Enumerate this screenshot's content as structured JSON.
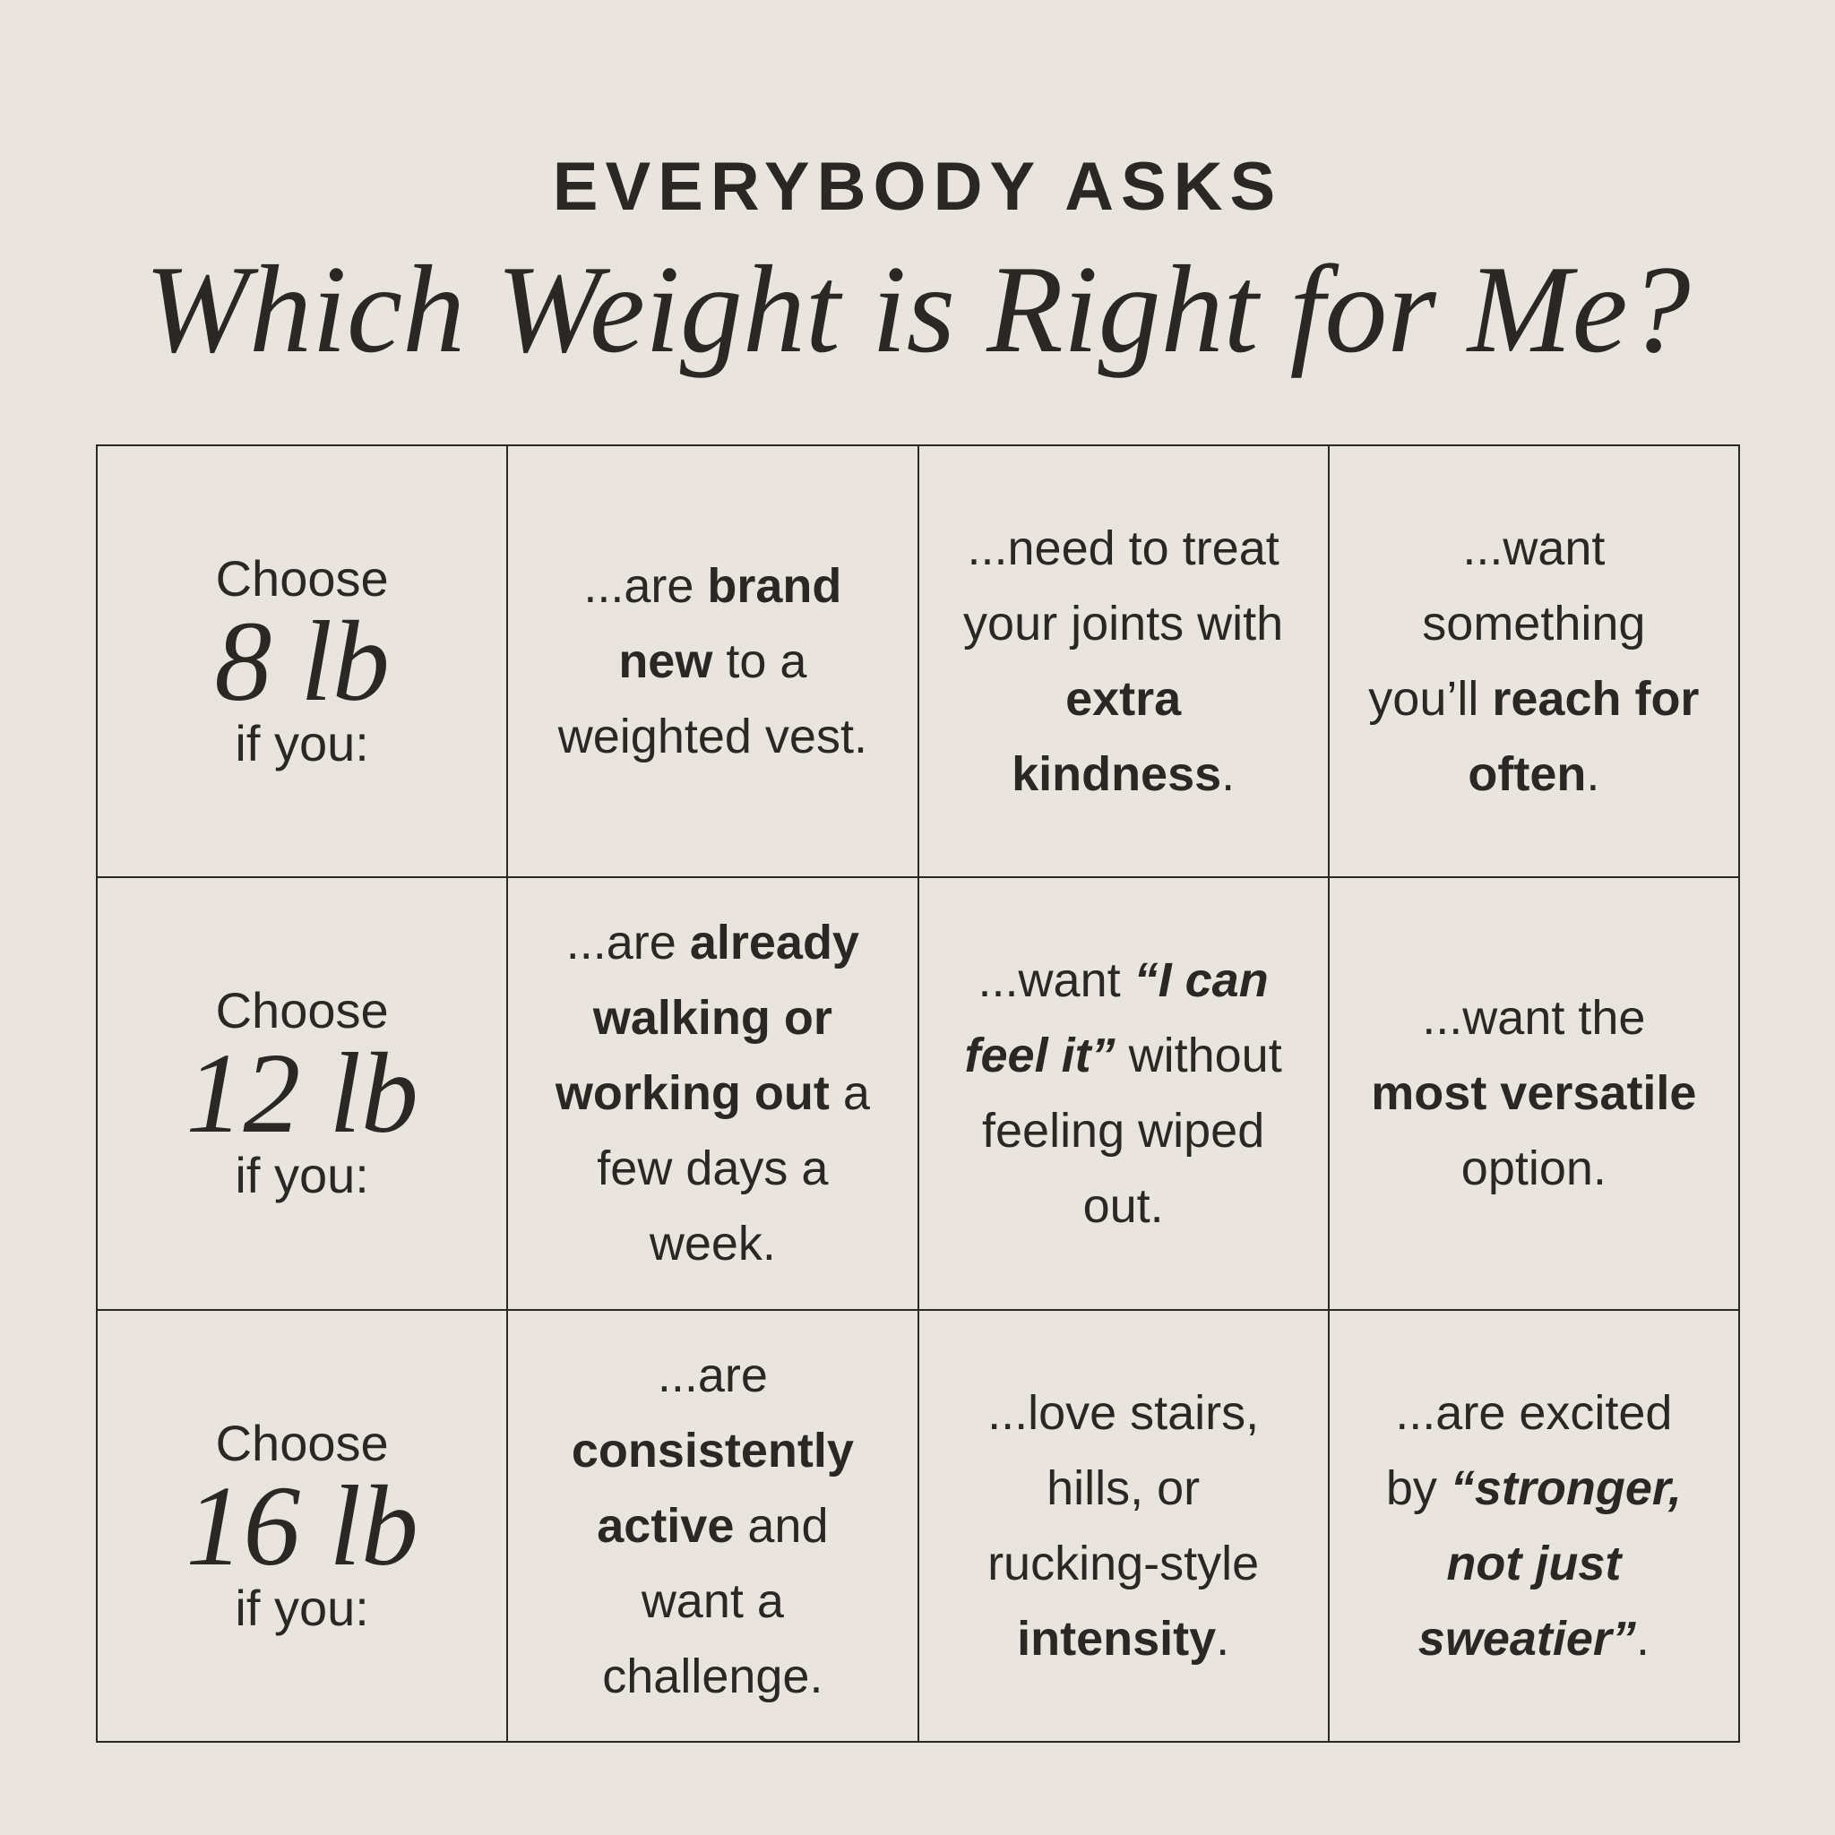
{
  "header": {
    "kicker": "EVERYBODY ASKS",
    "title": "Which Weight is Right for Me?"
  },
  "table": {
    "rows": [
      {
        "label": {
          "prefix": "Choose",
          "weight": "8 lb",
          "suffix": "if you:"
        },
        "cells": [
          {
            "runs": [
              {
                "text": "...are "
              },
              {
                "text": "brand new",
                "bold": true
              },
              {
                "text": " to a weighted vest."
              }
            ]
          },
          {
            "runs": [
              {
                "text": "...need to treat your joints with "
              },
              {
                "text": "extra kindness",
                "bold": true
              },
              {
                "text": "."
              }
            ]
          },
          {
            "runs": [
              {
                "text": "...want something you’ll "
              },
              {
                "text": "reach for often",
                "bold": true
              },
              {
                "text": "."
              }
            ]
          }
        ]
      },
      {
        "label": {
          "prefix": "Choose",
          "weight": "12 lb",
          "suffix": "if you:"
        },
        "cells": [
          {
            "runs": [
              {
                "text": "...are "
              },
              {
                "text": "already walking or working out",
                "bold": true
              },
              {
                "text": " a few days a week."
              }
            ]
          },
          {
            "runs": [
              {
                "text": "...want "
              },
              {
                "text": "“I can feel it”",
                "bold": true,
                "italic": true
              },
              {
                "text": " without feeling wiped out."
              }
            ]
          },
          {
            "runs": [
              {
                "text": "...want the "
              },
              {
                "text": "most versatile",
                "bold": true
              },
              {
                "text": " option."
              }
            ]
          }
        ]
      },
      {
        "label": {
          "prefix": "Choose",
          "weight": "16 lb",
          "suffix": "if you:"
        },
        "cells": [
          {
            "runs": [
              {
                "text": "...are "
              },
              {
                "text": "consistently active",
                "bold": true
              },
              {
                "text": " and want a challenge."
              }
            ]
          },
          {
            "runs": [
              {
                "text": "...love stairs, hills, or rucking-style "
              },
              {
                "text": "intensity",
                "bold": true
              },
              {
                "text": "."
              }
            ]
          },
          {
            "runs": [
              {
                "text": "...are excited by "
              },
              {
                "text": "“stronger, not just sweatier”",
                "bold": true,
                "italic": true
              },
              {
                "text": "."
              }
            ]
          }
        ]
      }
    ]
  }
}
